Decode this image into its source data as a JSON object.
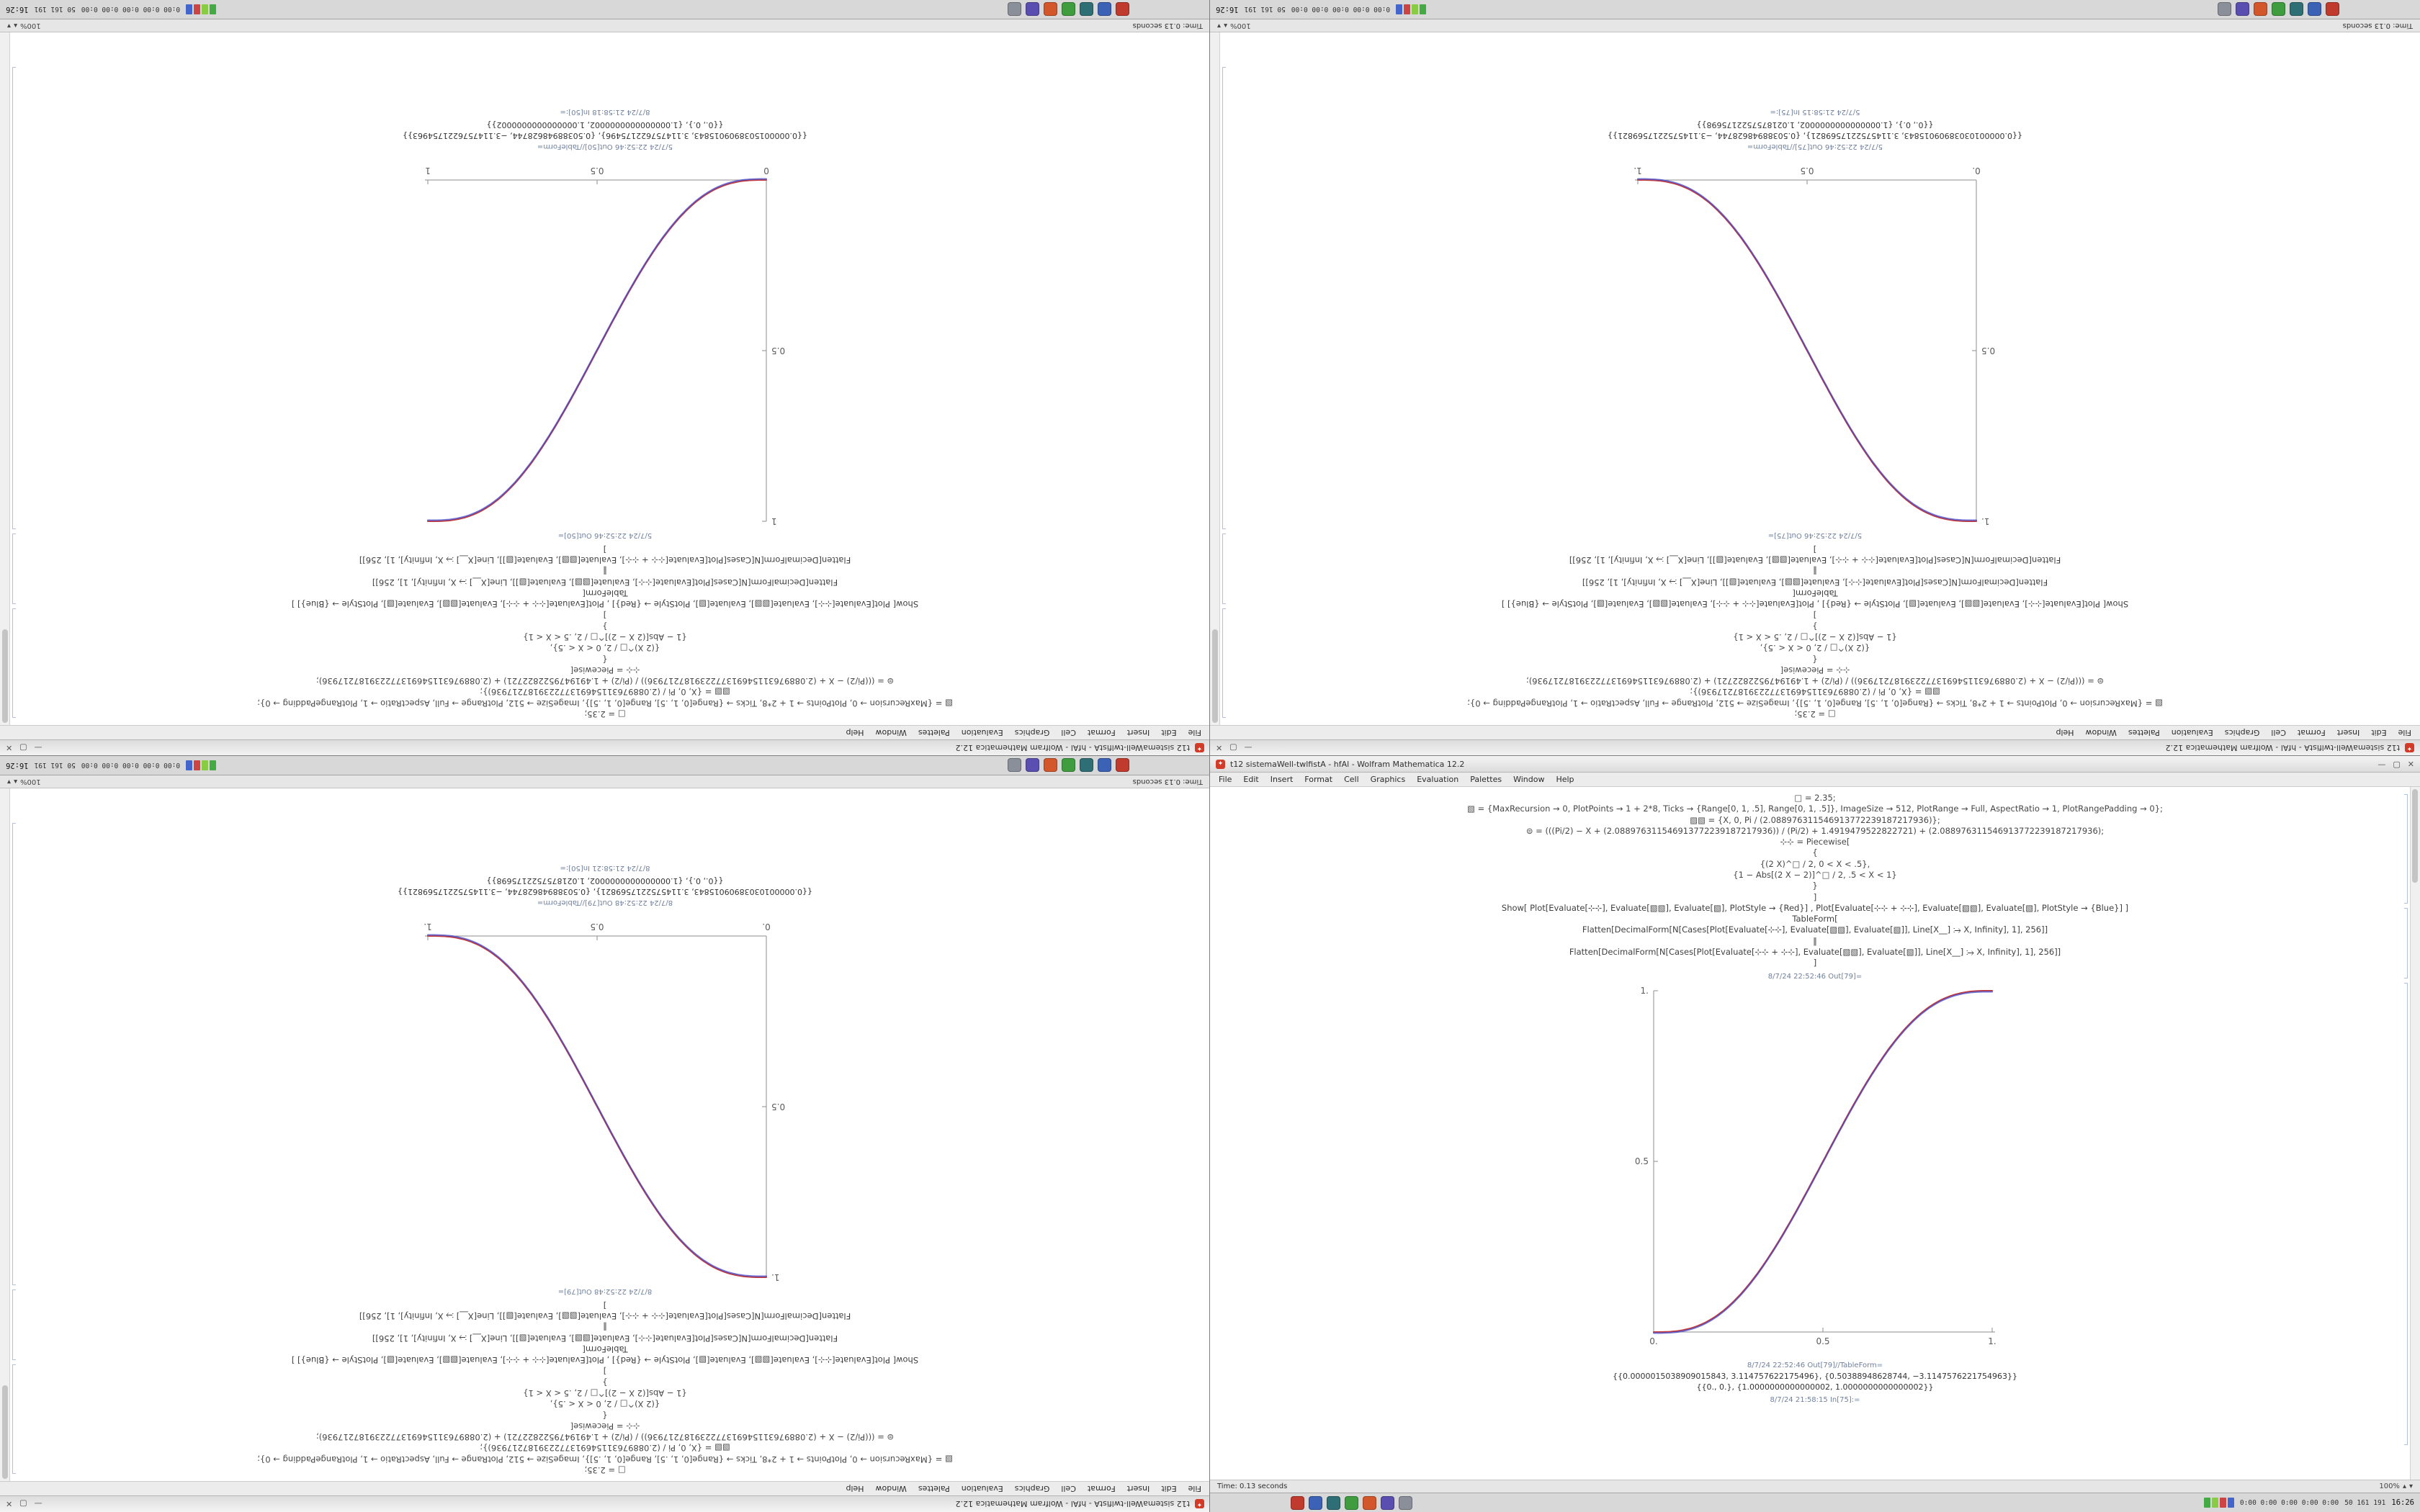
{
  "window": {
    "title": "t12 sistemaWell-twlfistA - hfAl - Wolfram Mathematica 12.2",
    "menu_items": [
      "File",
      "Edit",
      "Insert",
      "Format",
      "Cell",
      "Graphics",
      "Evaluation",
      "Palettes",
      "Window",
      "Help"
    ],
    "buttons": [
      "—",
      "▢",
      "✕"
    ]
  },
  "statusbar": {
    "time_text": "Time: 0.13 seconds",
    "zoom_value": "100%",
    "zoom_up": "▴",
    "zoom_down": "▾"
  },
  "taskbar": {
    "icons": [
      {
        "name": "launcher",
        "color": "#c03a2e"
      },
      {
        "name": "browser",
        "color": "#3b62b5"
      },
      {
        "name": "terminal",
        "color": "#2e6e75"
      },
      {
        "name": "chat",
        "color": "#3f9d3f"
      },
      {
        "name": "media",
        "color": "#d2572b"
      },
      {
        "name": "editor",
        "color": "#5a4fb0"
      },
      {
        "name": "files",
        "color": "#8a8f99"
      }
    ],
    "tray_meters": [
      {
        "name": "cpu-meter",
        "color": "#44aa44"
      },
      {
        "name": "mem-meter",
        "color": "#88cc44"
      },
      {
        "name": "net-meter",
        "color": "#cc4444"
      },
      {
        "name": "disk-meter",
        "color": "#4466cc"
      }
    ],
    "tray_text_1": "0:00 0:00 0:00 0:00 0:00",
    "tray_text_2": "50 161 191",
    "clock": "16:26"
  },
  "shared_code": {
    "pre_lines": [
      "□ = 2.35;",
      "▧ = {MaxRecursion → 0, PlotPoints → 1 + 2*8, Ticks → {Range[0, 1, .5], Range[0, 1, .5]}, ImageSize → 512, PlotRange → Full, AspectRatio → 1, PlotRangePadding → 0};",
      "▧▧ = {X, 0, Pi / (2.088976311546913772239187217936)};",
      "⊜ = (((Pi/2) − X + (2.088976311546913772239187217936)) / (Pi/2) + 1.4919479522822721) + (2.088976311546913772239187217936);",
      "⊹⊹ = Piecewise[",
      "{",
      "{(2 X)^□ / 2,  0 < X < .5},",
      "{1 − Abs[(2 X − 2)]^□ / 2,  .5 < X < 1}",
      "}",
      "]"
    ],
    "post_lines": [
      "Show[  Plot[Evaluate[⊹⊹], Evaluate[▧▧], Evaluate[▧], PlotStyle → {Red}] ,  Plot[Evaluate[⊹⊹ + ⊹⊹], Evaluate[▧▧], Evaluate[▧], PlotStyle → {Blue}]  ]",
      "TableForm[",
      "Flatten[DecimalForm[N[Cases[Plot[Evaluate[⊹⊹], Evaluate[▧▧], Evaluate[▧]], Line[X__] ⧴ X, Infinity], 1], 256]]",
      "‖",
      "Flatten[DecimalForm[N[Cases[Plot[Evaluate[⊹⊹ + ⊹⊹], Evaluate[▧▧], Evaluate[▧]], Line[X__] ⧴ X, Infinity], 1], 256]]",
      "]"
    ]
  },
  "screens": {
    "tl": {
      "pre_lines": [
        "□ = 2.35;",
        "▧ = {MaxRecursion → 0, PlotPoints → 1 + 2*8, Ticks → {Range[0, 1, .5], Range[0, 1, .5]}, ImageSize → 512, PlotRange → Full, AspectRatio → 1, PlotRangePadding → 0};",
        "▧▧ = {X, 0, Pi / (2.088976311546913772239187217936)};",
        "⊜ = (((Pi/2) − X + (2.088976311546913772239187217936)) / (Pi/2) + 1.4919479522822721) + (2.088976311546913772239187217936);",
        "⊹⊹ = Piecewise[",
        "{",
        "{(2 X)^□ / 2,  0 < X < .5},",
        "{1 − Abs[(2 X − 2)]^□ / 2,  .5 < X < 1}",
        "}",
        "]"
      ],
      "post_lines": [
        "Show[  Plot[Evaluate[⊹⊹], Evaluate[▧▧], Evaluate[▧], PlotStyle → {Red}] ,  Plot[Evaluate[⊹⊹ + ⊹⊹], Evaluate[▧▧], Evaluate[▧], PlotStyle → {Blue}]  ]",
        "TableForm[",
        "Flatten[DecimalForm[N[Cases[Plot[Evaluate[⊹⊹], Evaluate[▧▧], Evaluate[▧]], Line[X__] ⧴ X, Infinity], 1], 256]]",
        "‖",
        "Flatten[DecimalForm[N[Cases[Plot[Evaluate[⊹⊹ + ⊹⊹], Evaluate[▧▧], Evaluate[▧]], Line[X__] ⧴ X, Infinity], 1], 256]]",
        "]"
      ],
      "out_label": "5/7/24 22:52:46 Out[50]=",
      "tableform_label": "5/7/24 22:52:46 Out[50]//TableForm=",
      "results": [
        "{{0.0000015038909015843, 3.114757622175496}, {0.50388948628744, −3.1147576221754963}}",
        "{{0., 0.}, {1.0000000000000002, 1.0000000000000002}}"
      ],
      "in_label": "8/7/24 21:58:18 In[50]:=",
      "plot": {
        "direction": "ascending",
        "x_ticks": [
          "0",
          "0.5",
          "1"
        ],
        "y_ticks": [
          "0.5",
          "1"
        ],
        "red": "#c43c3c",
        "blue": "#4444c4"
      }
    },
    "tr": {
      "pre_lines": [
        "□ = 2.35;",
        "▧ = {MaxRecursion → 0, PlotPoints → 1 + 2*8, Ticks → {Range[0, 1, .5], Range[0, 1, .5]}, ImageSize → 512, PlotRange → Full, AspectRatio → 1, PlotRangePadding → 0};",
        "▧▧ = {X, 0, Pi / (2.088976311546913772239187217936)};",
        "⊜ = (((Pi/2) − X + (2.088976311546913772239187217936)) / (Pi/2) + 1.4919479522822721) + (2.088976311546913772239187217936);",
        "⊹⊹ = Piecewise[",
        "{",
        "{(2 X)^□ / 2,  0 < X < .5},",
        "{1 − Abs[(2 X − 2)]^□ / 2,  .5 < X < 1}",
        "}",
        "]"
      ],
      "post_lines": [
        "Show[  Plot[Evaluate[⊹⊹], Evaluate[▧▧], Evaluate[▧], PlotStyle → {Red}] ,  Plot[Evaluate[⊹⊹ + ⊹⊹], Evaluate[▧▧], Evaluate[▧], PlotStyle → {Blue}]  ]",
        "TableForm[",
        "Flatten[DecimalForm[N[Cases[Plot[Evaluate[⊹⊹], Evaluate[▧▧], Evaluate[▧]], Line[X__] ⧴ X, Infinity], 1], 256]]",
        "‖",
        "Flatten[DecimalForm[N[Cases[Plot[Evaluate[⊹⊹ + ⊹⊹], Evaluate[▧▧], Evaluate[▧]], Line[X__] ⧴ X, Infinity], 1], 256]]",
        "]"
      ],
      "out_label": "5/7/24 22:52:46 Out[75]=",
      "tableform_label": "5/7/24 22:52:46 Out[75]//TableForm=",
      "results": [
        "{{0.00000103038909015843, 3.1145752217569821}, {0.50388948628744, −3.1145752217569821}}",
        "{{0., 0.}, {1.0000000000000002, 1.0218757522175698}}"
      ],
      "in_label": "5/7/24 21:58:15 In[75]:=",
      "plot": {
        "direction": "descending",
        "x_ticks": [
          "0.",
          "0.5",
          "1."
        ],
        "y_ticks": [
          "0.5",
          "1."
        ],
        "red": "#c43c3c",
        "blue": "#4444c4"
      }
    },
    "bl": {
      "pre_lines": [
        "□ = 2.35;",
        "▧ = {MaxRecursion → 0, PlotPoints → 1 + 2*8, Ticks → {Range[0, 1, .5], Range[0, 1, .5]}, ImageSize → 512, PlotRange → Full, AspectRatio → 1, PlotRangePadding → 0};",
        "▧▧ = {X, 0, Pi / (2.088976311546913772239187217936)};",
        "⊜ = (((Pi/2) − X + (2.088976311546913772239187217936)) / (Pi/2) + 1.4919479522822721) + (2.088976311546913772239187217936);",
        "⊹⊹ = Piecewise[",
        "{",
        "{(2 X)^□ / 2,  0 < X < .5},",
        "{1 − Abs[(2 X − 2)]^□ / 2,  .5 < X < 1}",
        "}",
        "]"
      ],
      "post_lines": [
        "Show[  Plot[Evaluate[⊹⊹], Evaluate[▧▧], Evaluate[▧], PlotStyle → {Red}] ,  Plot[Evaluate[⊹⊹ + ⊹⊹], Evaluate[▧▧], Evaluate[▧], PlotStyle → {Blue}]  ]",
        "TableForm[",
        "Flatten[DecimalForm[N[Cases[Plot[Evaluate[⊹⊹], Evaluate[▧▧], Evaluate[▧]], Line[X__] ⧴ X, Infinity], 1], 256]]",
        "‖",
        "Flatten[DecimalForm[N[Cases[Plot[Evaluate[⊹⊹ + ⊹⊹], Evaluate[▧▧], Evaluate[▧]], Line[X__] ⧴ X, Infinity], 1], 256]]",
        "]"
      ],
      "out_label": "8/7/24 22:52:48 Out[79]=",
      "tableform_label": "8/7/24 22:52:48 Out[79]//TableForm=",
      "results": [
        "{{0.00000103038909015843, 3.1145752217569821}, {0.50388948628744, −3.1145752217569821}}",
        "{{0., 0.}, {1.0000000000000002, 1.0218757522175698}}"
      ],
      "in_label": "8/7/24 21:58:21 In[50]:=",
      "plot": {
        "direction": "descending",
        "x_ticks": [
          "0.",
          "0.5",
          "1."
        ],
        "y_ticks": [
          "0.5",
          "1."
        ],
        "red": "#c43c3c",
        "blue": "#4444c4"
      }
    },
    "br": {
      "pre_lines": [
        "□ = 2.35;",
        "▧ = {MaxRecursion → 0, PlotPoints → 1 + 2*8, Ticks → {Range[0, 1, .5], Range[0, 1, .5]}, ImageSize → 512, PlotRange → Full, AspectRatio → 1, PlotRangePadding → 0};",
        "▧▧ = {X, 0, Pi / (2.088976311546913772239187217936)};",
        "⊜ = (((Pi/2) − X + (2.088976311546913772239187217936)) / (Pi/2) + 1.4919479522822721) + (2.088976311546913772239187217936);",
        "⊹⊹ = Piecewise[",
        "{",
        "{(2 X)^□ / 2,  0 < X < .5},",
        "{1 − Abs[(2 X − 2)]^□ / 2,  .5 < X < 1}",
        "}",
        "]"
      ],
      "post_lines": [
        "Show[  Plot[Evaluate[⊹⊹], Evaluate[▧▧], Evaluate[▧], PlotStyle → {Red}] ,  Plot[Evaluate[⊹⊹ + ⊹⊹], Evaluate[▧▧], Evaluate[▧], PlotStyle → {Blue}]  ]",
        "TableForm[",
        "Flatten[DecimalForm[N[Cases[Plot[Evaluate[⊹⊹], Evaluate[▧▧], Evaluate[▧]], Line[X__] ⧴ X, Infinity], 1], 256]]",
        "‖",
        "Flatten[DecimalForm[N[Cases[Plot[Evaluate[⊹⊹ + ⊹⊹], Evaluate[▧▧], Evaluate[▧]], Line[X__] ⧴ X, Infinity], 1], 256]]",
        "]"
      ],
      "out_label": "8/7/24 22:52:46 Out[79]=",
      "tableform_label": "8/7/24 22:52:46 Out[79]//TableForm=",
      "results": [
        "{{0.0000015038909015843, 3.114757622175496}, {0.50388948628744, −3.1147576221754963}}",
        "{{0., 0.}, {1.0000000000000002, 1.0000000000000002}}"
      ],
      "in_label": "8/7/24 21:58:15 In[75]:=",
      "plot": {
        "direction": "ascending",
        "x_ticks": [
          "0.",
          "0.5",
          "1."
        ],
        "y_ticks": [
          "0.5",
          "1."
        ],
        "red": "#c43c3c",
        "blue": "#4444c4"
      }
    }
  },
  "chart_data": [
    {
      "position": "top-left",
      "type": "line",
      "title": "",
      "xlabel": "",
      "ylabel": "",
      "xlim": [
        0,
        1
      ],
      "ylim": [
        0,
        1
      ],
      "grid": false,
      "legend": "none",
      "x": [
        0,
        0.1,
        0.2,
        0.3,
        0.4,
        0.5,
        0.6,
        0.7,
        0.8,
        0.9,
        1
      ],
      "series": [
        {
          "name": "red-curve",
          "values": [
            0,
            0.009,
            0.058,
            0.163,
            0.317,
            0.5,
            0.683,
            0.837,
            0.942,
            0.991,
            1
          ]
        },
        {
          "name": "blue-curve",
          "values": [
            0,
            0.009,
            0.058,
            0.163,
            0.317,
            0.5,
            0.683,
            0.837,
            0.942,
            0.991,
            1
          ]
        }
      ],
      "x_ticks": [
        "0",
        "0.5",
        "1"
      ],
      "y_ticks": [
        "0",
        "0.5",
        "1"
      ]
    },
    {
      "position": "top-right",
      "type": "line",
      "title": "",
      "xlabel": "",
      "ylabel": "",
      "xlim": [
        0,
        1
      ],
      "ylim": [
        0,
        1
      ],
      "grid": false,
      "legend": "none",
      "x": [
        0,
        0.1,
        0.2,
        0.3,
        0.4,
        0.5,
        0.6,
        0.7,
        0.8,
        0.9,
        1
      ],
      "series": [
        {
          "name": "red-curve",
          "values": [
            1,
            0.991,
            0.942,
            0.837,
            0.683,
            0.5,
            0.317,
            0.163,
            0.058,
            0.009,
            0
          ]
        },
        {
          "name": "blue-curve",
          "values": [
            1,
            0.991,
            0.942,
            0.837,
            0.683,
            0.5,
            0.317,
            0.163,
            0.058,
            0.009,
            0
          ]
        }
      ],
      "x_ticks": [
        "0.",
        "0.5",
        "1."
      ],
      "y_ticks": [
        "0.",
        "0.5",
        "1."
      ]
    },
    {
      "position": "bottom-left",
      "type": "line",
      "title": "",
      "xlabel": "",
      "ylabel": "",
      "xlim": [
        0,
        1
      ],
      "ylim": [
        0,
        1
      ],
      "grid": false,
      "legend": "none",
      "x": [
        0,
        0.1,
        0.2,
        0.3,
        0.4,
        0.5,
        0.6,
        0.7,
        0.8,
        0.9,
        1
      ],
      "series": [
        {
          "name": "red-curve",
          "values": [
            1,
            0.991,
            0.942,
            0.837,
            0.683,
            0.5,
            0.317,
            0.163,
            0.058,
            0.009,
            0
          ]
        },
        {
          "name": "blue-curve",
          "values": [
            1,
            0.991,
            0.942,
            0.837,
            0.683,
            0.5,
            0.317,
            0.163,
            0.058,
            0.009,
            0
          ]
        }
      ],
      "x_ticks": [
        "0.",
        "0.5",
        "1."
      ],
      "y_ticks": [
        "0.",
        "0.5",
        "1."
      ]
    },
    {
      "position": "bottom-right",
      "type": "line",
      "title": "",
      "xlabel": "",
      "ylabel": "",
      "xlim": [
        0,
        1
      ],
      "ylim": [
        0,
        1
      ],
      "grid": false,
      "legend": "none",
      "x": [
        0,
        0.1,
        0.2,
        0.3,
        0.4,
        0.5,
        0.6,
        0.7,
        0.8,
        0.9,
        1
      ],
      "series": [
        {
          "name": "red-curve",
          "values": [
            0,
            0.009,
            0.058,
            0.163,
            0.317,
            0.5,
            0.683,
            0.837,
            0.942,
            0.991,
            1
          ]
        },
        {
          "name": "blue-curve",
          "values": [
            0,
            0.009,
            0.058,
            0.163,
            0.317,
            0.5,
            0.683,
            0.837,
            0.942,
            0.991,
            1
          ]
        }
      ],
      "x_ticks": [
        "0.",
        "0.5",
        "1."
      ],
      "y_ticks": [
        "0.",
        "0.5",
        "1."
      ]
    }
  ]
}
